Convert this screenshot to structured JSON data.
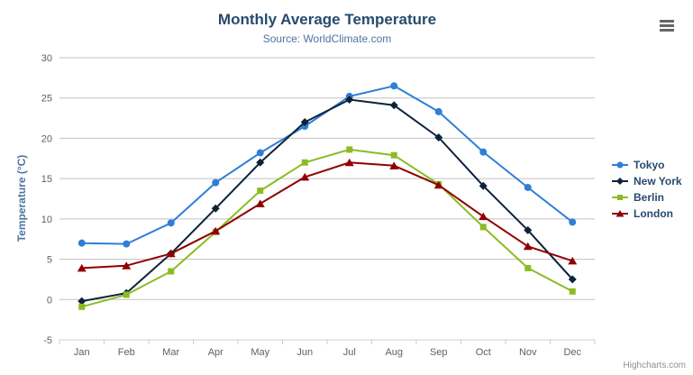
{
  "page": {
    "credits": "Highcharts.com"
  },
  "colors": {
    "title": "#274b6d",
    "subtitle": "#4d759e",
    "axis_label": "#606060",
    "axis_title": "#4d759e",
    "legend_text": "#274b6d",
    "grid": "#c0c0c0",
    "axis_line": "#c0d0e0",
    "credits": "#909090",
    "menu_icon": "#666666",
    "background": "#ffffff"
  },
  "chart_data": {
    "type": "line",
    "title": "Monthly Average Temperature",
    "subtitle": "Source: WorldClimate.com",
    "xlabel": "",
    "ylabel": "Temperature (°C)",
    "categories": [
      "Jan",
      "Feb",
      "Mar",
      "Apr",
      "May",
      "Jun",
      "Jul",
      "Aug",
      "Sep",
      "Oct",
      "Nov",
      "Dec"
    ],
    "ylim": [
      -5,
      30
    ],
    "yticks": [
      -5,
      0,
      5,
      10,
      15,
      20,
      25,
      30
    ],
    "grid": true,
    "legend_position": "right",
    "series": [
      {
        "name": "Tokyo",
        "color": "#2f7ed8",
        "marker": "circle",
        "values": [
          7.0,
          6.9,
          9.5,
          14.5,
          18.2,
          21.5,
          25.2,
          26.5,
          23.3,
          18.3,
          13.9,
          9.6
        ]
      },
      {
        "name": "New York",
        "color": "#0d233a",
        "marker": "diamond",
        "values": [
          -0.2,
          0.8,
          5.7,
          11.3,
          17.0,
          22.0,
          24.8,
          24.1,
          20.1,
          14.1,
          8.6,
          2.5
        ]
      },
      {
        "name": "Berlin",
        "color": "#8bbc21",
        "marker": "square",
        "values": [
          -0.9,
          0.6,
          3.5,
          8.4,
          13.5,
          17.0,
          18.6,
          17.9,
          14.3,
          9.0,
          3.9,
          1.0
        ]
      },
      {
        "name": "London",
        "color": "#910000",
        "marker": "triangle",
        "values": [
          3.9,
          4.2,
          5.7,
          8.5,
          11.9,
          15.2,
          17.0,
          16.6,
          14.2,
          10.3,
          6.6,
          4.8
        ]
      }
    ]
  }
}
